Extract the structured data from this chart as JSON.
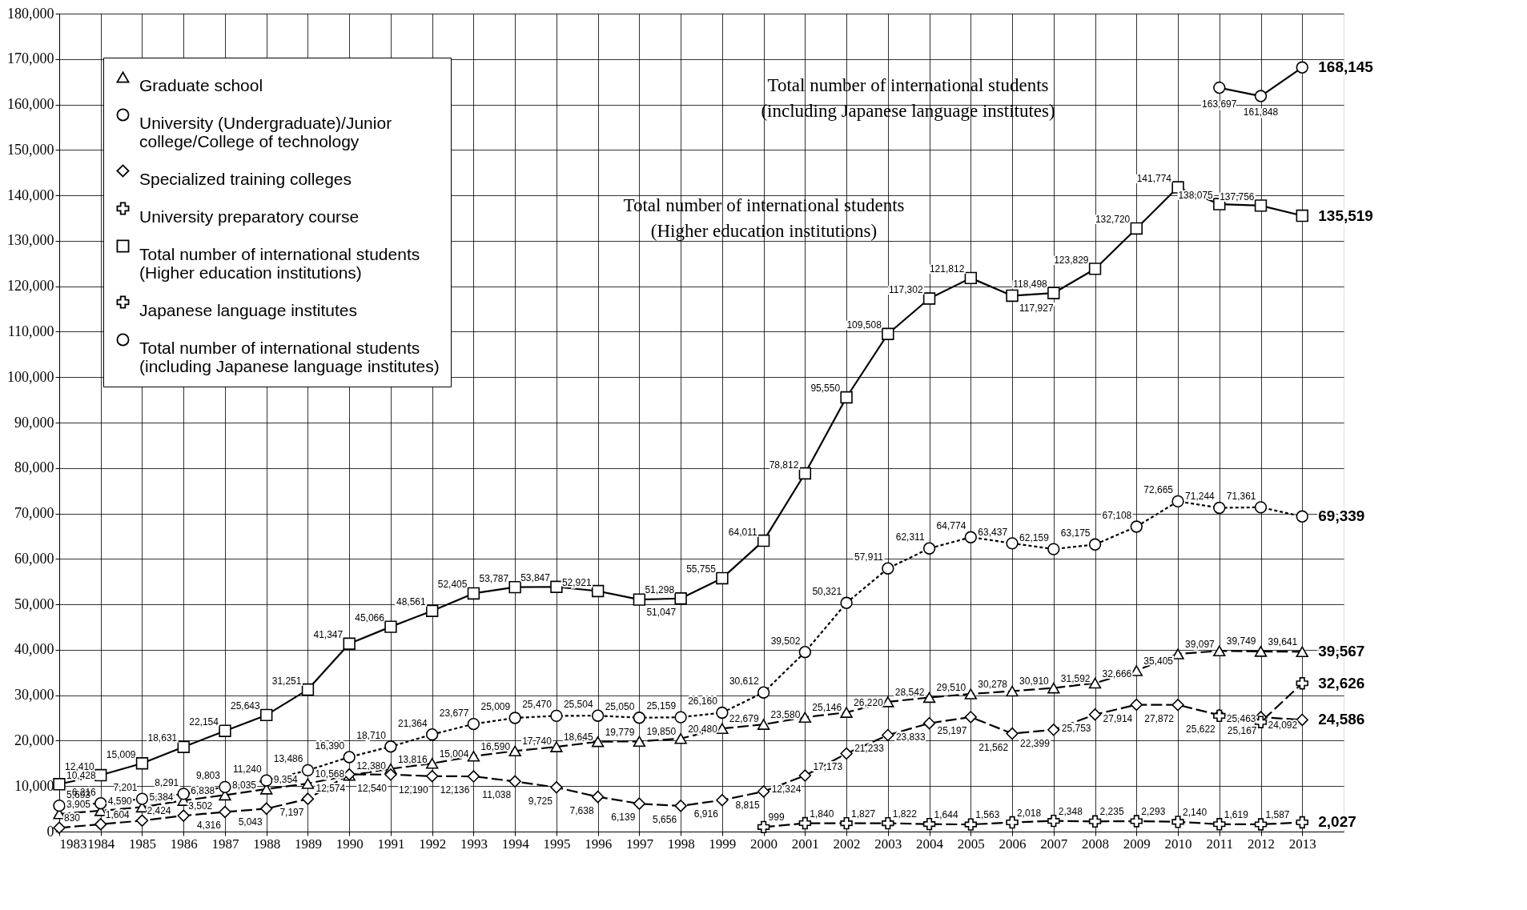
{
  "chart_data": {
    "type": "line",
    "xlim": [
      1983,
      2014
    ],
    "xticks": [
      1983,
      1984,
      1985,
      1986,
      1987,
      1988,
      1989,
      1990,
      1991,
      1992,
      1993,
      1994,
      1995,
      1996,
      1997,
      1998,
      1999,
      2000,
      2001,
      2002,
      2003,
      2004,
      2005,
      2006,
      2007,
      2008,
      2009,
      2010,
      2011,
      2012,
      2013
    ],
    "ylim": [
      0,
      180000
    ],
    "yticks": [
      0,
      {
        "value": 10000,
        "label": "10,000"
      },
      {
        "value": 20000,
        "label": "20,000"
      },
      {
        "value": 30000,
        "label": "30,000"
      },
      {
        "value": 40000,
        "label": "40,000"
      },
      {
        "value": 50000,
        "label": "50,000"
      },
      {
        "value": 60000,
        "label": "60,000"
      },
      {
        "value": 70000,
        "label": "70,000"
      },
      {
        "value": 80000,
        "label": "80,000"
      },
      {
        "value": 90000,
        "label": "90,000"
      },
      {
        "value": 100000,
        "label": "100,000"
      },
      {
        "value": 110000,
        "label": "110,000"
      },
      {
        "value": 120000,
        "label": "120,000"
      },
      {
        "value": 130000,
        "label": "130,000"
      },
      {
        "value": 140000,
        "label": "140,000"
      },
      {
        "value": 150000,
        "label": "150,000"
      },
      {
        "value": 160000,
        "label": "160,000"
      },
      {
        "value": 170000,
        "label": "170,000"
      },
      {
        "value": 180000,
        "label": "180,000"
      }
    ],
    "grid": true,
    "legend": "top left",
    "annotations": [
      "Total number of international students\n(including Japanese language institutes)",
      "Total number of international students\n(Higher education institutions)"
    ],
    "series": [
      {
        "name": "Graduate school",
        "color": "#000000",
        "marker": "triangle",
        "line_style": "dashed",
        "x": [
          1983,
          1984,
          1985,
          1986,
          1987,
          1988,
          1989,
          1990,
          1991,
          1992,
          1993,
          1994,
          1995,
          1996,
          1997,
          1998,
          1999,
          2000,
          2001,
          2002,
          2003,
          2004,
          2005,
          2006,
          2007,
          2008,
          2009,
          2010,
          2011,
          2012,
          2013
        ],
        "values": [
          3905,
          4590,
          5384,
          6838,
          8035,
          9354,
          10568,
          12380,
          13816,
          15004,
          16590,
          17740,
          18645,
          19779,
          19850,
          20480,
          22679,
          23580,
          25146,
          26220,
          28542,
          29510,
          30278,
          30910,
          31592,
          32666,
          35405,
          39097,
          39749,
          39641,
          39567
        ],
        "value_labels": [
          "3,905",
          "4,590",
          "5,384",
          "6,838",
          "8,035",
          "9,354",
          "10,568",
          "12,380",
          "13,816",
          "15,004",
          "16,590",
          "17,740",
          "18,645",
          "19,779",
          "19,850",
          "20,480",
          "22,679",
          "23,580",
          "25,146",
          "26,220",
          "28,542",
          "29,510",
          "30,278",
          "30,910",
          "31,592",
          "32,666",
          "35,405",
          "39,097",
          "39,749",
          "39,641",
          "39,567"
        ]
      },
      {
        "name": "University (Undergraduate)/Junior\ncollege/College of technology",
        "color": "#000000",
        "marker": "circle",
        "line_style": "dotted",
        "x": [
          1983,
          1984,
          1985,
          1986,
          1987,
          1988,
          1989,
          1990,
          1991,
          1992,
          1993,
          1994,
          1995,
          1996,
          1997,
          1998,
          1999,
          2000,
          2001,
          2002,
          2003,
          2004,
          2005,
          2006,
          2007,
          2008,
          2009,
          2010,
          2011,
          2012,
          2013
        ],
        "values": [
          5693,
          6216,
          7201,
          8291,
          9803,
          11240,
          13486,
          16390,
          18710,
          21364,
          23677,
          25009,
          25470,
          25504,
          25050,
          25159,
          26160,
          30612,
          39502,
          50321,
          57911,
          62311,
          64774,
          63437,
          62159,
          63175,
          67108,
          72665,
          71244,
          71361,
          69339
        ],
        "value_labels": [
          "5,693",
          "6,216",
          "7,201",
          "8,291",
          "9,803",
          "11,240",
          "13,486",
          "16,390",
          "18,710",
          "21,364",
          "23,677",
          "25,009",
          "25,470",
          "25,504",
          "25,050",
          "25,159",
          "26,160",
          "30,612",
          "39,502",
          "50,321",
          "57,911",
          "62,311",
          "64,774",
          "63,437",
          "62,159",
          "63,175",
          "67,108",
          "72,665",
          "71,244",
          "71,361",
          "69,339"
        ]
      },
      {
        "name": "Specialized training colleges",
        "color": "#000000",
        "marker": "diamond",
        "line_style": "dashed",
        "x": [
          1983,
          1984,
          1985,
          1986,
          1987,
          1988,
          1989,
          1990,
          1991,
          1992,
          1993,
          1994,
          1995,
          1996,
          1997,
          1998,
          1999,
          2000,
          2001,
          2002,
          2003,
          2004,
          2005,
          2006,
          2007,
          2008,
          2009,
          2010,
          2011,
          2012,
          2013
        ],
        "values": [
          830,
          1604,
          2424,
          3502,
          4316,
          5043,
          7197,
          12574,
          12540,
          12190,
          12136,
          11038,
          9725,
          7638,
          6139,
          5656,
          6916,
          8815,
          12324,
          17173,
          21233,
          23833,
          25197,
          21562,
          22399,
          25753,
          27914,
          27872,
          25622,
          25167,
          24586
        ],
        "value_labels": [
          "830",
          "1,604",
          "2,424",
          "3,502",
          "4,316",
          "5,043",
          "7,197",
          "12,574",
          "12,540",
          "12,190",
          "12,136",
          "11,038",
          "9,725",
          "7,638",
          "6,139",
          "5,656",
          "6,916",
          "8,815",
          "12,324",
          "17,173",
          "21,233",
          "23,833",
          "25,197",
          "21,562",
          "22,399",
          "25,753",
          "27,914",
          "27,872",
          "25,622",
          "25,167",
          "24,586"
        ]
      },
      {
        "name": "University preparatory course",
        "color": "#000000",
        "marker": "cross",
        "line_style": "dashed",
        "x": [
          2000,
          2001,
          2002,
          2003,
          2004,
          2005,
          2006,
          2007,
          2008,
          2009,
          2010,
          2011,
          2012,
          2013
        ],
        "values": [
          999,
          1840,
          1827,
          1822,
          1644,
          1563,
          2018,
          2348,
          2235,
          2293,
          2140,
          1619,
          1587,
          2027
        ],
        "value_labels": [
          "999",
          "1,840",
          "1,827",
          "1,822",
          "1,644",
          "1,563",
          "2,018",
          "2,348",
          "2,235",
          "2,293",
          "2,140",
          "1,619",
          "1,587",
          "2,027"
        ]
      },
      {
        "name": "Total number of international students\n(Higher education institutions)",
        "color": "#000000",
        "marker": "square",
        "line_style": "solid",
        "x": [
          1983,
          1984,
          1985,
          1986,
          1987,
          1988,
          1989,
          1990,
          1991,
          1992,
          1993,
          1994,
          1995,
          1996,
          1997,
          1998,
          1999,
          2000,
          2001,
          2002,
          2003,
          2004,
          2005,
          2006,
          2007,
          2008,
          2009,
          2010,
          2011,
          2012,
          2013
        ],
        "values": [
          10428,
          12410,
          15009,
          18631,
          22154,
          25643,
          31251,
          41347,
          45066,
          48561,
          52405,
          53787,
          53847,
          52921,
          51047,
          51298,
          55755,
          64011,
          78812,
          95550,
          109508,
          117302,
          121812,
          117927,
          118498,
          123829,
          132720,
          141774,
          138075,
          137756,
          135519
        ],
        "value_labels": [
          "10,428",
          "12,410",
          "15,009",
          "18,631",
          "22,154",
          "25,643",
          "31,251",
          "41,347",
          "45,066",
          "48,561",
          "52,405",
          "53,787",
          "53,847",
          "52,921",
          "51,047",
          "51,298",
          "55,755",
          "64,011",
          "78,812",
          "95,550",
          "109,508",
          "117,302",
          "121,812",
          "117,927",
          "118,498",
          "123,829",
          "132,720",
          "141,774",
          "138,075",
          "137,756",
          "135,519"
        ]
      },
      {
        "name": "Japanese language institutes",
        "color": "#000000",
        "marker": "cross",
        "line_style": "dashed",
        "x": [
          2011,
          2012,
          2013
        ],
        "values": [
          25463,
          24092,
          32626
        ],
        "value_labels": [
          "25,463",
          "24,092",
          "32,626"
        ]
      },
      {
        "name": "Total number of international students\n(including Japanese language institutes)",
        "color": "#000000",
        "marker": "circle",
        "line_style": "solid",
        "x": [
          2011,
          2012,
          2013
        ],
        "values": [
          163697,
          161848,
          168145
        ],
        "value_labels": [
          "163,697",
          "161,848",
          "168,145"
        ]
      }
    ]
  }
}
